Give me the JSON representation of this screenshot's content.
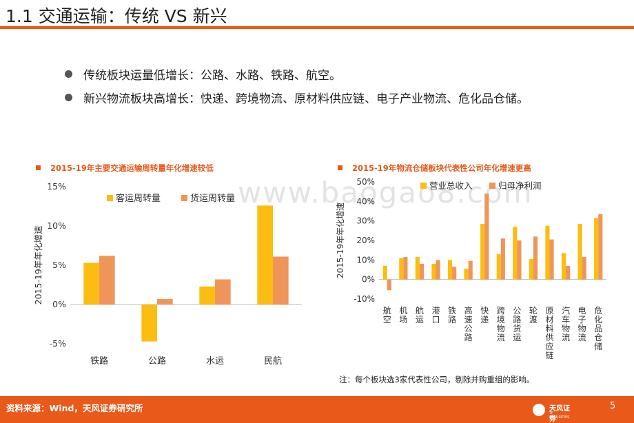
{
  "title": "1.1 交通运输：传统 VS 新兴",
  "bullets": [
    "传统板块运量低增长：公路、水路、铁路、航空。",
    "新兴物流板块高增长：快递、跨境物流、原材料供应链、电子产业物流、危化品仓储。"
  ],
  "watermark": "www.baogao8.com",
  "note": "注：每个板块选3家代表性公司，剔除并购重组的影响。",
  "footer": {
    "source": "资料来源：Wind，天风证券研究所",
    "logo_text": "天风证券",
    "logo_sub": "TF SECURITIES",
    "page_number": "5"
  },
  "colors": {
    "accent": "#e8591a",
    "series_yellow": "#fbbd12",
    "series_orange": "#f0955a",
    "footer": "#e8591a"
  },
  "chart_data": [
    {
      "type": "bar",
      "title": "2015-19年主要交通运输周转量年化增速较低",
      "ylabel": "2015-19年年化增速",
      "xlabel": "",
      "categories": [
        "铁路",
        "公路",
        "水运",
        "民航"
      ],
      "series": [
        {
          "name": "客运周转量",
          "values": [
            5.3,
            -4.7,
            2.3,
            12.6
          ]
        },
        {
          "name": "货运周转量",
          "values": [
            6.2,
            0.7,
            3.2,
            6.1
          ]
        }
      ],
      "ylim": [
        -5,
        15
      ],
      "yticks": [
        -5,
        0,
        5,
        10,
        15
      ],
      "ytick_labels": [
        "-5%",
        "0%",
        "5%",
        "10%",
        "15%"
      ],
      "grid": false,
      "legend": "top"
    },
    {
      "type": "bar",
      "title": "2015-19年物流仓储板块代表性公司年化增速更高",
      "ylabel": "2015-19年年化增速",
      "xlabel": "",
      "categories": [
        "航空",
        "机场",
        "航运",
        "港口",
        "铁路",
        "高速公路",
        "快递",
        "跨境物流",
        "公路货运",
        "轮渡",
        "原材料供应链",
        "汽车物流",
        "电子物流",
        "危化品仓储"
      ],
      "series": [
        {
          "name": "营业总收入",
          "values": [
            7,
            11,
            11.5,
            8,
            10,
            5.5,
            28.5,
            13,
            27,
            10.5,
            27.5,
            13.5,
            28.5,
            31.5
          ]
        },
        {
          "name": "归母净利润",
          "values": [
            -5.5,
            11.5,
            8,
            10,
            6.5,
            9.5,
            44,
            21,
            20,
            22,
            20.5,
            7,
            11.5,
            33.5
          ]
        }
      ],
      "ylim": [
        -10,
        50
      ],
      "yticks": [
        -10,
        0,
        10,
        20,
        30,
        40,
        50
      ],
      "ytick_labels": [
        "-10%",
        "0%",
        "10%",
        "20%",
        "30%",
        "40%",
        "50%"
      ],
      "grid": false,
      "legend": "top"
    }
  ]
}
